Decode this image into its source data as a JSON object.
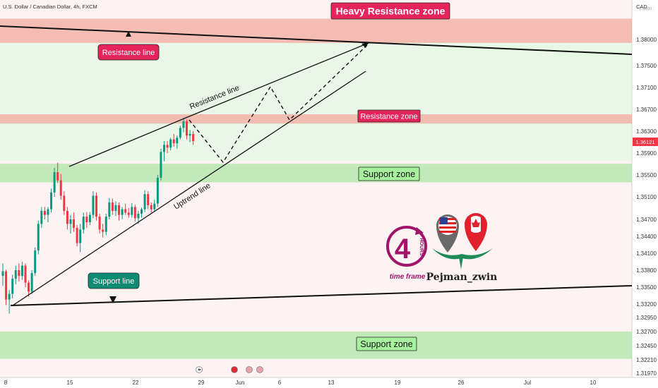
{
  "header": {
    "symbol": "U.S. Dollar / Canadian Dollar, 4h, FXCM"
  },
  "currency": "CAD",
  "author": "Pejman_zwin",
  "logo": {
    "number": "4",
    "unit": "HOURS",
    "caption": "time frame"
  },
  "colors": {
    "up": "#089981",
    "down": "#f23645",
    "resistance_fill": "#f2a99e",
    "support_fill": "#a5e39d",
    "label_red": "#e5245c",
    "label_green": "#a7f09d",
    "label_teal": "#0f8a73"
  },
  "chart_data": {
    "type": "candlestick",
    "timeframe": "4h",
    "y_axis": {
      "ticks": [
        "1.38000",
        "1.37500",
        "1.37100",
        "1.36700",
        "1.36300",
        "1.35900",
        "1.35500",
        "1.35100",
        "1.34700",
        "1.34400",
        "1.34100",
        "1.33800",
        "1.33500",
        "1.33200",
        "1.32950",
        "1.32700",
        "1.32450",
        "1.32210",
        "1.31970"
      ],
      "top_partial": "1.38300",
      "last_price": "1.36121"
    },
    "x_axis": {
      "ticks": [
        "8",
        "15",
        "22",
        "29",
        "Jun",
        "6",
        "13",
        "19",
        "26",
        "Jul",
        "10"
      ]
    },
    "candles": [
      [
        1.337,
        1.3392,
        1.3352,
        1.3378
      ],
      [
        1.3378,
        1.3381,
        1.3318,
        1.3328
      ],
      [
        1.3328,
        1.3345,
        1.3302,
        1.3338
      ],
      [
        1.3338,
        1.3372,
        1.333,
        1.3365
      ],
      [
        1.3365,
        1.3388,
        1.3355,
        1.338
      ],
      [
        1.338,
        1.3392,
        1.336,
        1.337
      ],
      [
        1.337,
        1.3395,
        1.3363,
        1.3388
      ],
      [
        1.3388,
        1.3392,
        1.335,
        1.3358
      ],
      [
        1.3358,
        1.3362,
        1.3333,
        1.3342
      ],
      [
        1.3342,
        1.338,
        1.3338,
        1.3375
      ],
      [
        1.3375,
        1.342,
        1.337,
        1.3415
      ],
      [
        1.3415,
        1.3468,
        1.3408,
        1.3462
      ],
      [
        1.3462,
        1.3492,
        1.3455,
        1.3485
      ],
      [
        1.3485,
        1.3492,
        1.347,
        1.3478
      ],
      [
        1.3478,
        1.3492,
        1.3465,
        1.3488
      ],
      [
        1.3488,
        1.3525,
        1.3482,
        1.3518
      ],
      [
        1.3518,
        1.3563,
        1.351,
        1.3555
      ],
      [
        1.3555,
        1.3572,
        1.3535,
        1.354
      ],
      [
        1.354,
        1.3552,
        1.3505,
        1.3512
      ],
      [
        1.3512,
        1.352,
        1.3478,
        1.3485
      ],
      [
        1.3485,
        1.3492,
        1.3452,
        1.3462
      ],
      [
        1.3462,
        1.3478,
        1.3445,
        1.347
      ],
      [
        1.347,
        1.3482,
        1.3448,
        1.3455
      ],
      [
        1.3455,
        1.346,
        1.3422,
        1.3428
      ],
      [
        1.3428,
        1.3462,
        1.3412,
        1.3452
      ],
      [
        1.3452,
        1.3482,
        1.3445,
        1.3475
      ],
      [
        1.3475,
        1.3483,
        1.3455,
        1.3465
      ],
      [
        1.3465,
        1.3483,
        1.346,
        1.3478
      ],
      [
        1.3478,
        1.352,
        1.3472,
        1.3512
      ],
      [
        1.3512,
        1.3518,
        1.3468,
        1.3475
      ],
      [
        1.3475,
        1.348,
        1.3445,
        1.3452
      ],
      [
        1.3452,
        1.3462,
        1.3438,
        1.3448
      ],
      [
        1.3448,
        1.348,
        1.3442,
        1.3475
      ],
      [
        1.3475,
        1.3508,
        1.347,
        1.35
      ],
      [
        1.35,
        1.3507,
        1.3478,
        1.3485
      ],
      [
        1.3485,
        1.3502,
        1.3476,
        1.3495
      ],
      [
        1.3495,
        1.35,
        1.3468,
        1.3478
      ],
      [
        1.3478,
        1.3492,
        1.347,
        1.3488
      ],
      [
        1.3488,
        1.3498,
        1.3478,
        1.3482
      ],
      [
        1.3482,
        1.349,
        1.3473,
        1.3478
      ],
      [
        1.3478,
        1.3499,
        1.3473,
        1.3492
      ],
      [
        1.3492,
        1.3496,
        1.3466,
        1.3472
      ],
      [
        1.3472,
        1.3485,
        1.3462,
        1.348
      ],
      [
        1.348,
        1.3491,
        1.3473,
        1.3488
      ],
      [
        1.3488,
        1.3522,
        1.3483,
        1.3515
      ],
      [
        1.3515,
        1.352,
        1.3488,
        1.3495
      ],
      [
        1.3495,
        1.35,
        1.3482,
        1.3488
      ],
      [
        1.3488,
        1.3505,
        1.3484,
        1.3498
      ],
      [
        1.3498,
        1.355,
        1.3492,
        1.3545
      ],
      [
        1.3545,
        1.3598,
        1.354,
        1.3592
      ],
      [
        1.3592,
        1.3612,
        1.3575,
        1.3605
      ],
      [
        1.3605,
        1.3612,
        1.359,
        1.36
      ],
      [
        1.36,
        1.3618,
        1.3595,
        1.3615
      ],
      [
        1.3615,
        1.3625,
        1.3602,
        1.3608
      ],
      [
        1.3608,
        1.3622,
        1.3598,
        1.3618
      ],
      [
        1.3618,
        1.364,
        1.3615,
        1.3636
      ],
      [
        1.3636,
        1.3655,
        1.3628,
        1.3648
      ],
      [
        1.3648,
        1.3651,
        1.3615,
        1.3622
      ],
      [
        1.3622,
        1.3632,
        1.361,
        1.3625
      ],
      [
        1.3625,
        1.363,
        1.3605,
        1.3612
      ]
    ]
  },
  "zones": [
    {
      "label": "Heavy Resistance zone",
      "top": 1.384,
      "bottom": 1.37935,
      "kind": "resistance"
    },
    {
      "label": "Resistance zone",
      "top": 1.3661,
      "bottom": 1.3644,
      "kind": "resistance"
    },
    {
      "label": "Support zone",
      "top": 1.35705,
      "bottom": 1.35365,
      "kind": "support"
    },
    {
      "label": "Support zone",
      "top": 1.327,
      "bottom": 1.32225,
      "kind": "support"
    }
  ],
  "lines": {
    "resistance_line": "Resistance line",
    "uptrend_line": "Uptrend line",
    "resistance_line_top": "Resistance line",
    "support_line": "Support line"
  }
}
